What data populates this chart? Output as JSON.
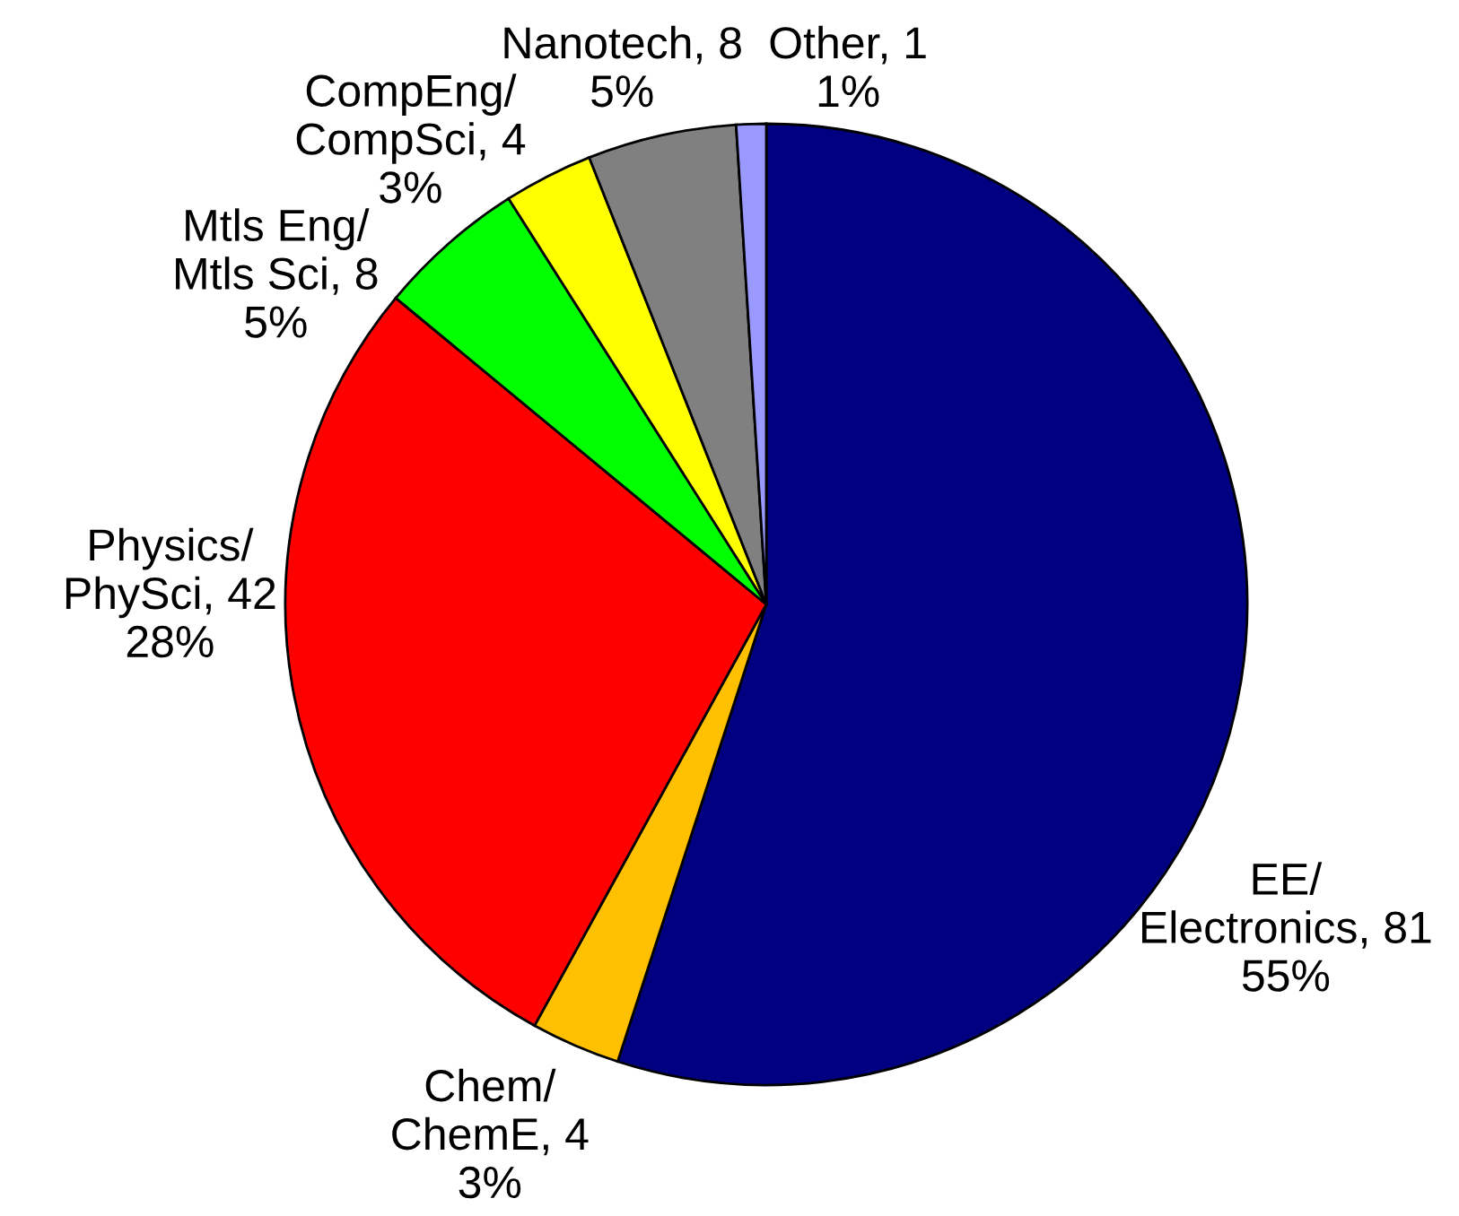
{
  "chart_data": {
    "type": "pie",
    "categories": [
      "EE/\nElectronics, 81",
      "Chem/\nChemE, 4",
      "Physics/\nPhySci, 42",
      "Mtls Eng/\nMtls Sci, 8",
      "CompEng/\nCompSci, 4",
      "Nanotech, 8",
      "Other, 1"
    ],
    "values": [
      55,
      3,
      28,
      5,
      3,
      5,
      1
    ],
    "colors": [
      "#000080",
      "#ffc000",
      "#ff0000",
      "#00ff00",
      "#ffff00",
      "#808080",
      "#9999ff"
    ],
    "value_labels": [
      "55%",
      "3%",
      "28%",
      "5%",
      "3%",
      "5%",
      "1%"
    ]
  }
}
